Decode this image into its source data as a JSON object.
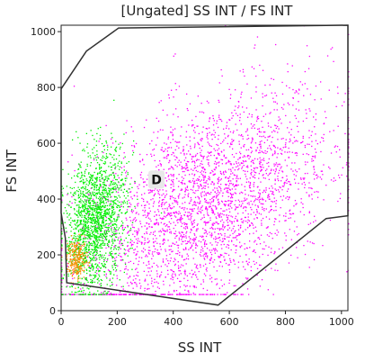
{
  "chart_data": {
    "type": "scatter",
    "title": "[Ungated] SS INT / FS INT",
    "xlabel": "SS INT",
    "ylabel": "FS INT",
    "xlim": [
      0,
      1023
    ],
    "ylim": [
      0,
      1023
    ],
    "xticks": [
      0,
      200,
      400,
      600,
      800,
      1000
    ],
    "yticks": [
      0,
      200,
      400,
      600,
      800,
      1000
    ],
    "xtick_labels": [
      "0",
      "200",
      "400",
      "600",
      "800",
      "1000"
    ],
    "ytick_labels": [
      "0",
      "200",
      "400",
      "600",
      "800",
      "1000"
    ],
    "grid": false,
    "populations": [
      {
        "color": "#ff00ff",
        "center": [
          500,
          370
        ],
        "spread": [
          230,
          180
        ],
        "note": "broad population"
      },
      {
        "color": "#00ee00",
        "center": [
          120,
          320
        ],
        "spread": [
          55,
          120
        ]
      },
      {
        "color": "#ff8c00",
        "center": [
          55,
          185
        ],
        "spread": [
          18,
          35
        ]
      }
    ],
    "gate": {
      "label": "D",
      "label_position": [
        340,
        470
      ],
      "vertices": [
        [
          0,
          795
        ],
        [
          90,
          930
        ],
        [
          205,
          1013
        ],
        [
          1023,
          1023
        ],
        [
          1023,
          340
        ],
        [
          945,
          330
        ],
        [
          560,
          20
        ],
        [
          20,
          100
        ],
        [
          15,
          260
        ],
        [
          0,
          350
        ]
      ]
    }
  },
  "colors": {
    "axis": "#222222",
    "gate_line": "#333333",
    "gate_label_bg": "#e8e8e8"
  }
}
